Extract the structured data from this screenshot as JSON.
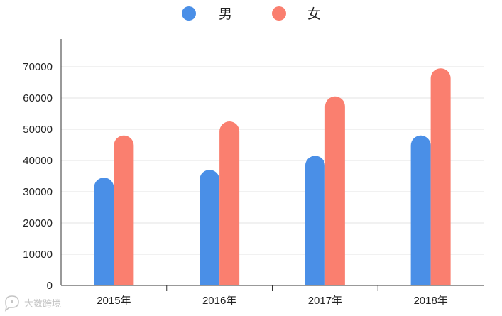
{
  "chart_data": {
    "type": "bar",
    "categories": [
      "2015年",
      "2016年",
      "2017年",
      "2018年"
    ],
    "series": [
      {
        "name": "男",
        "color": "#4a8fe7",
        "values": [
          34500,
          37000,
          41500,
          48000
        ]
      },
      {
        "name": "女",
        "color": "#fa7f6f",
        "values": [
          48000,
          52500,
          60500,
          69500
        ]
      }
    ],
    "yticks": [
      0,
      10000,
      20000,
      30000,
      40000,
      50000,
      60000,
      70000
    ],
    "ylim": [
      0,
      80000
    ],
    "grid": true,
    "legend_position": "top-center",
    "bar_style": "rounded-top"
  },
  "watermark": {
    "text": "大数跨境",
    "icon": "chat-bubble-logo"
  }
}
